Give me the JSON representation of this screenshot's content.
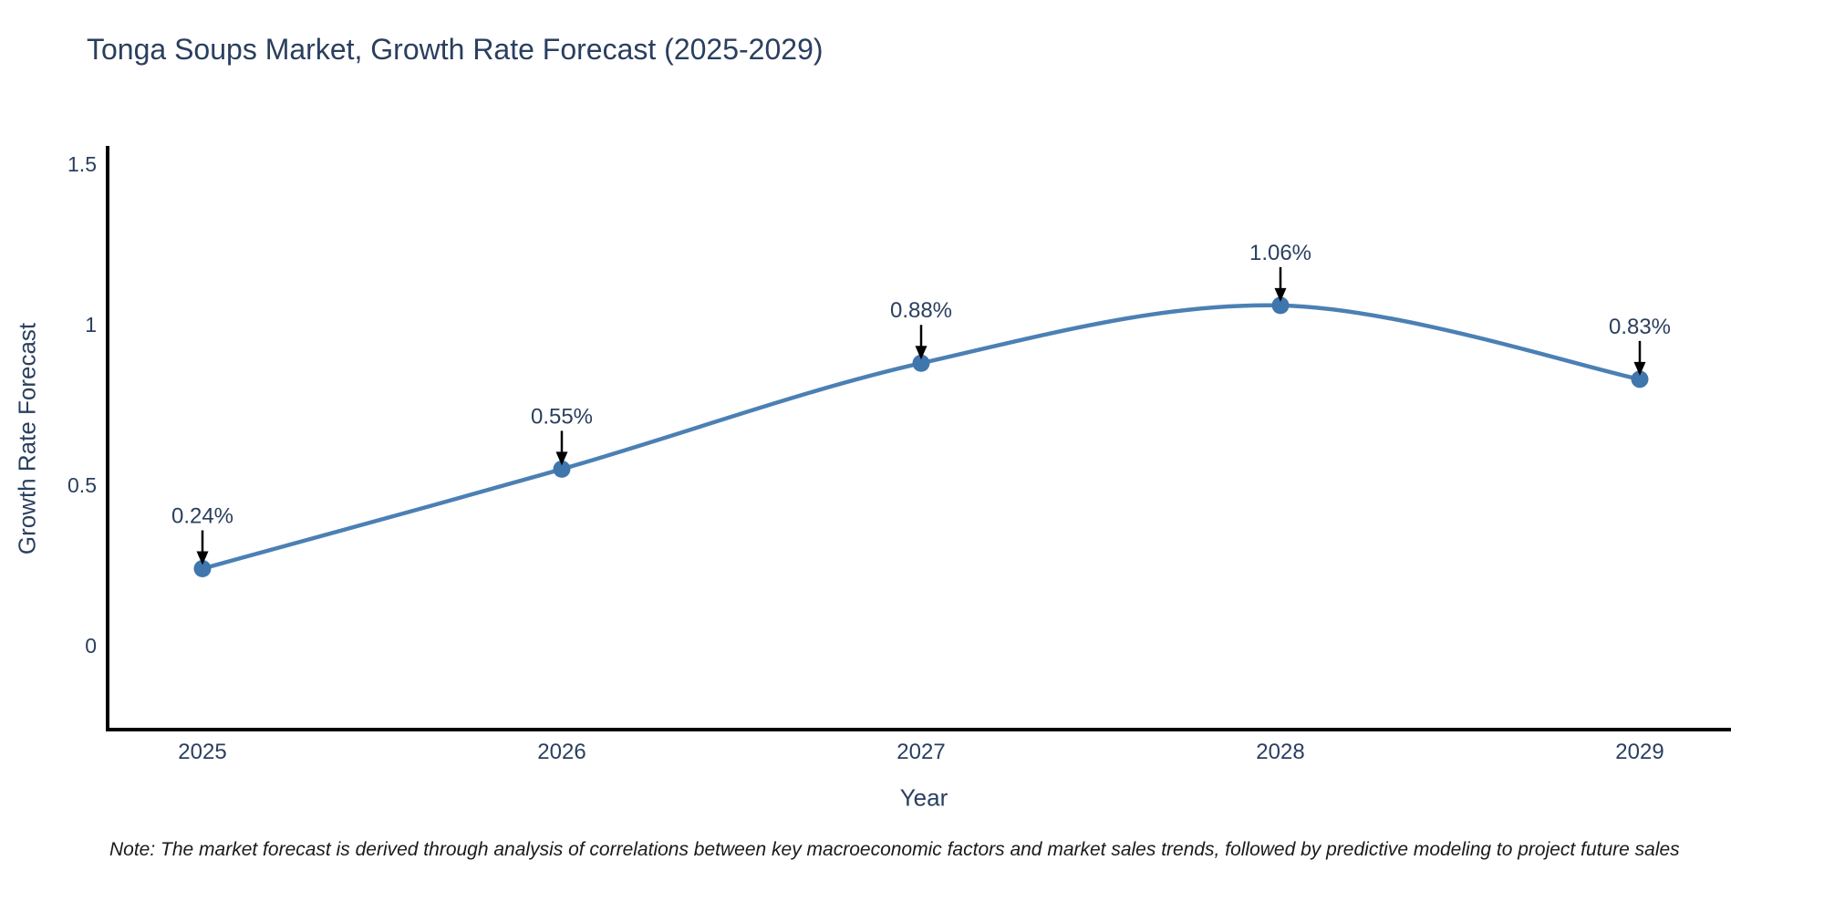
{
  "title": "Tonga Soups Market, Growth Rate Forecast (2025-2029)",
  "note": "Note: The market forecast is derived through analysis of correlations between key macroeconomic factors and market sales trends, followed by predictive modeling to project future sales",
  "chart_data": {
    "type": "line",
    "title": "Tonga Soups Market, Growth Rate Forecast (2025-2029)",
    "xlabel": "Year",
    "ylabel": "Growth Rate Forecast",
    "categories": [
      "2025",
      "2026",
      "2027",
      "2028",
      "2029"
    ],
    "series": [
      {
        "name": "Growth Rate Forecast",
        "values": [
          0.24,
          0.55,
          0.88,
          1.06,
          0.83
        ]
      }
    ],
    "point_labels": [
      "0.24%",
      "0.55%",
      "0.88%",
      "1.06%",
      "0.83%"
    ],
    "yticks": [
      0,
      0.5,
      1,
      1.5
    ],
    "ytick_labels": [
      "0",
      "0.5",
      "1",
      "1.5"
    ],
    "ylim": [
      -0.27,
      1.55
    ],
    "grid": false,
    "legend": false,
    "line_color": "#4b80b4",
    "marker_color": "#3f76ad",
    "arrow_color": "#000000",
    "axis_color": "#000000",
    "text_color": "#2a3f5f"
  }
}
